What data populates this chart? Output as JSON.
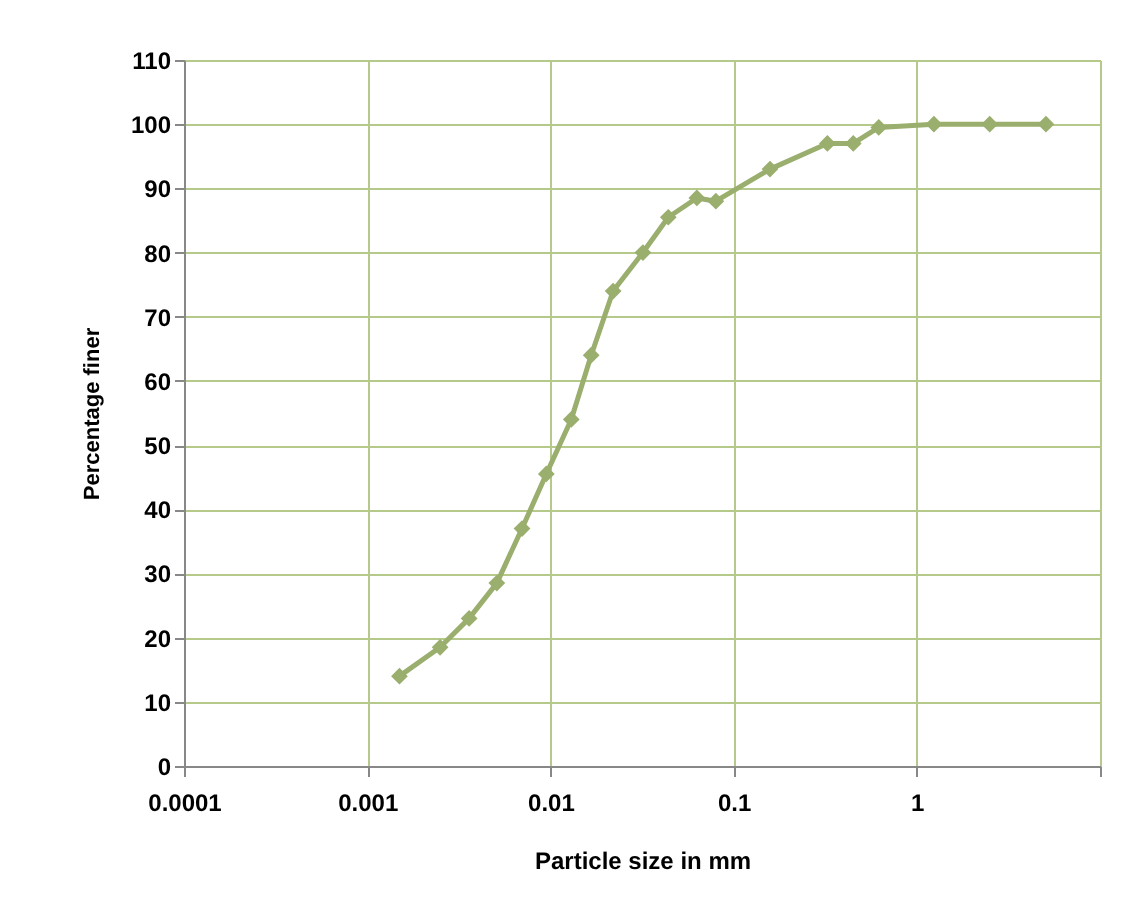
{
  "chart_data": {
    "type": "line",
    "xlabel": "Particle size in mm",
    "ylabel": "Percentage finer",
    "log": "x",
    "xlim": [
      0.0001,
      10
    ],
    "xticks": [
      0.0001,
      0.001,
      0.01,
      0.1,
      1,
      {
        "value": 10,
        "label": null
      }
    ],
    "ylim": [
      0,
      110
    ],
    "yticks": [
      0,
      10,
      20,
      30,
      40,
      50,
      60,
      70,
      80,
      90,
      100,
      110
    ],
    "grid": true,
    "marker": "diamond",
    "line_style": "solid",
    "series": [
      {
        "color": "#9aae6e",
        "x": [
          0.0015,
          0.0025,
          0.0036,
          0.0051,
          0.007,
          0.0095,
          0.013,
          0.0167,
          0.022,
          0.032,
          0.044,
          0.063,
          0.08,
          0.158,
          0.325,
          0.45,
          0.62,
          1.24,
          2.5,
          5.07
        ],
        "values": [
          14,
          18.5,
          23,
          28.5,
          37,
          45.5,
          54,
          64,
          74,
          80,
          85.5,
          88.5,
          88,
          93,
          97,
          97,
          99.5,
          100,
          100,
          100
        ]
      }
    ]
  }
}
